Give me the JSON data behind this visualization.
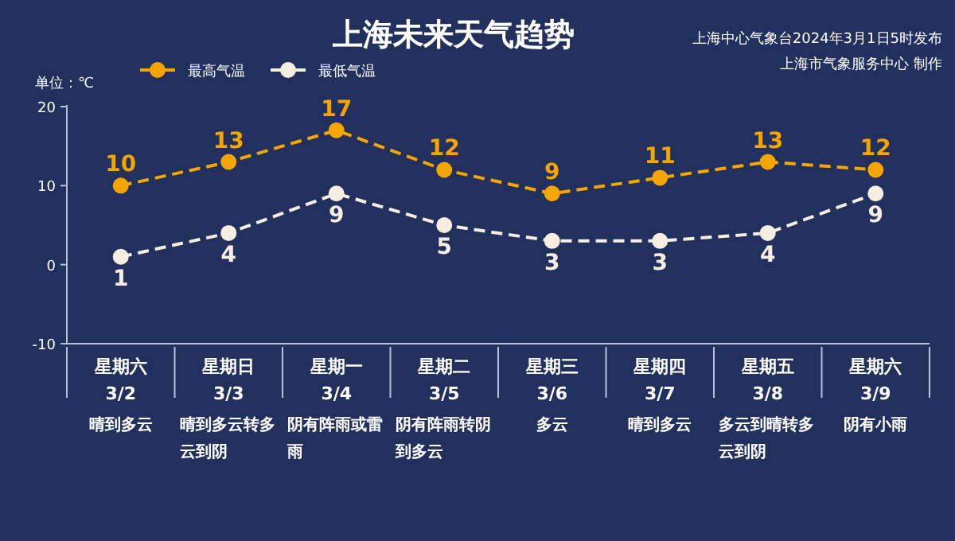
{
  "chart_data": {
    "type": "line",
    "title": "上海未来天气趋势",
    "ylabel": "单位：℃",
    "annotations": [
      "上海中心气象台2024年3月1日5时发布",
      "上海市气象服务中心 制作"
    ],
    "categories": [
      "星期六\n3/2\n晴到多云",
      "星期日\n3/3\n晴到多云转多云到阴",
      "星期一\n3/4\n阴有阵雨或雷雨",
      "星期二\n3/5\n阴有阵雨转阴到多云",
      "星期三\n3/6\n多云",
      "星期四\n3/7\n晴到多云",
      "星期五\n3/8\n多云到晴转多云到阴",
      "星期六\n3/9\n阴有小雨"
    ],
    "series": [
      {
        "name": "最高气温",
        "color": "#f5a500",
        "values": [
          10,
          13,
          17,
          12,
          9,
          11,
          13,
          12
        ]
      },
      {
        "name": "最低气温",
        "color": "#f7eee2",
        "values": [
          1,
          4,
          9,
          5,
          3,
          3,
          4,
          9
        ]
      }
    ],
    "ylim": [
      -10,
      20
    ],
    "yticks": [
      -10,
      0,
      10,
      20
    ],
    "grid": false,
    "legend": "top left",
    "marker": "circle",
    "line_style": "dashed",
    "data_labels": true
  }
}
